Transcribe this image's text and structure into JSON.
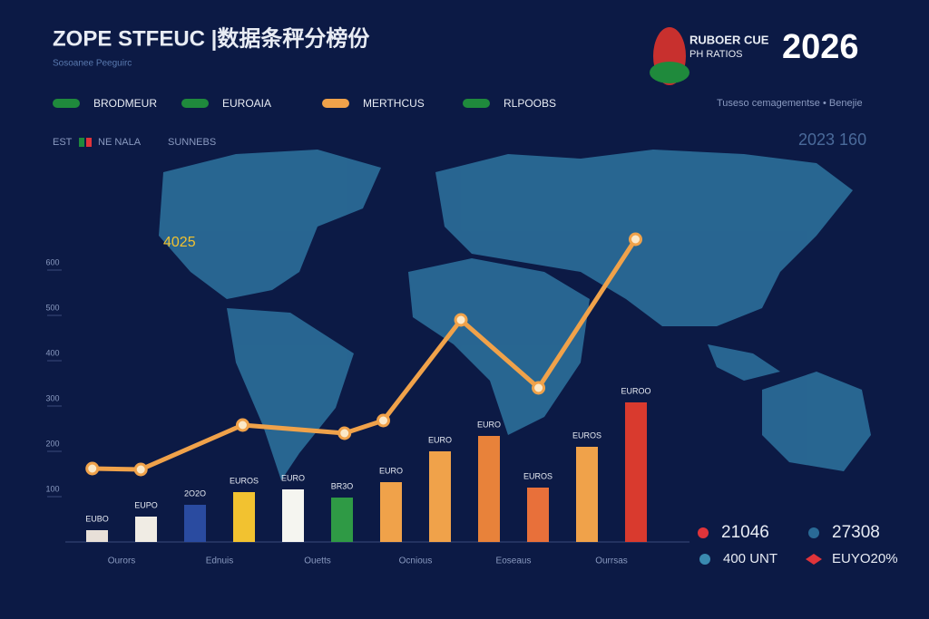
{
  "header": {
    "title": "ZOPE STFEUC |数据条秤分榜份",
    "subtitle": "Sosoanee Peeguirc",
    "logo_line1": "RUBOER CUE",
    "logo_line2": "PH RATIOS",
    "year": "2026",
    "tagline": "Tuseso cemagementse • Benejie",
    "side_value": "2023 160",
    "map_label": "4025"
  },
  "legend": {
    "items": [
      {
        "name": "BRODMEUR",
        "color": "#1f8a3c"
      },
      {
        "name": "EUROAIA",
        "color": "#1f8a3c"
      },
      {
        "name": "MERTHCUS",
        "color": "#f0a24a"
      },
      {
        "name": "RLPOOBS",
        "color": "#1f8a3c"
      }
    ],
    "sub_left": "EST",
    "sub_mid": "NE NALA",
    "sub_right": "SUNNEBS"
  },
  "chart_data": [
    {
      "type": "bar",
      "categories": [
        "Ourors",
        null,
        "Ednuis",
        null,
        "Ouetts",
        null,
        "Ocnious",
        null,
        "Eoseaus",
        null,
        "Ourrsas",
        null
      ],
      "values": [
        26,
        56,
        82,
        110,
        116,
        98,
        132,
        200,
        234,
        120,
        210,
        308
      ],
      "bar_labels": [
        "EUBO",
        "EUPO",
        "2O2O",
        "EUROS",
        "EURO",
        "BR3O",
        "EURO",
        "EURO",
        "EURO",
        "EUROS",
        "EUROS",
        "EUROO"
      ],
      "colors": [
        "#e8e0d8",
        "#f0ece4",
        "#2a4ba0",
        "#f2c230",
        "#f5f5f0",
        "#2f9a45",
        "#f0a24a",
        "#f0a24a",
        "#e8823a",
        "#e8703a",
        "#f0a24a",
        "#d93a2e"
      ],
      "ylim": [
        0,
        700
      ],
      "yticks": [
        100,
        200,
        300,
        400,
        500,
        600
      ]
    },
    {
      "type": "line",
      "x": [
        0.5,
        1.5,
        3.6,
        5.7,
        6.5,
        8.1,
        9.7,
        11.7
      ],
      "xlim": [
        0,
        13
      ],
      "ylim": [
        0,
        700
      ],
      "series": [
        {
          "name": "MERTHCUS",
          "color": "#f0a24a",
          "values": [
            162,
            160,
            258,
            240,
            268,
            490,
            340,
            668
          ]
        }
      ]
    }
  ],
  "stats": [
    {
      "value": "21046",
      "color": "#e0343a"
    },
    {
      "value": "27308",
      "color": "#2a6a96"
    },
    {
      "value": "400 UNT",
      "color": "#3a8ab0"
    },
    {
      "value": "EUYO20%",
      "color": "#e0343a"
    }
  ]
}
